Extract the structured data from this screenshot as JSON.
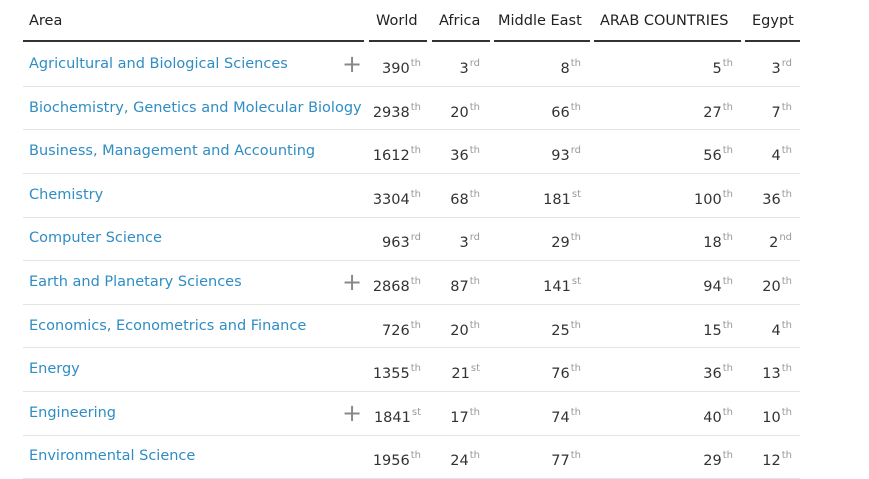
{
  "table": {
    "columns": [
      "Area",
      "World",
      "Africa",
      "Middle East",
      "ARAB COUNTRIES",
      "Egypt"
    ],
    "rows": [
      {
        "area": "Agricultural and Biological Sciences",
        "expandable": true,
        "ranks": [
          [
            390,
            "th"
          ],
          [
            3,
            "rd"
          ],
          [
            8,
            "th"
          ],
          [
            5,
            "th"
          ],
          [
            3,
            "rd"
          ]
        ]
      },
      {
        "area": "Biochemistry, Genetics and Molecular Biology",
        "expandable": false,
        "ranks": [
          [
            2938,
            "th"
          ],
          [
            20,
            "th"
          ],
          [
            66,
            "th"
          ],
          [
            27,
            "th"
          ],
          [
            7,
            "th"
          ]
        ]
      },
      {
        "area": "Business, Management and Accounting",
        "expandable": false,
        "ranks": [
          [
            1612,
            "th"
          ],
          [
            36,
            "th"
          ],
          [
            93,
            "rd"
          ],
          [
            56,
            "th"
          ],
          [
            4,
            "th"
          ]
        ]
      },
      {
        "area": "Chemistry",
        "expandable": false,
        "ranks": [
          [
            3304,
            "th"
          ],
          [
            68,
            "th"
          ],
          [
            181,
            "st"
          ],
          [
            100,
            "th"
          ],
          [
            36,
            "th"
          ]
        ]
      },
      {
        "area": "Computer Science",
        "expandable": false,
        "ranks": [
          [
            963,
            "rd"
          ],
          [
            3,
            "rd"
          ],
          [
            29,
            "th"
          ],
          [
            18,
            "th"
          ],
          [
            2,
            "nd"
          ]
        ]
      },
      {
        "area": "Earth and Planetary Sciences",
        "expandable": true,
        "ranks": [
          [
            2868,
            "th"
          ],
          [
            87,
            "th"
          ],
          [
            141,
            "st"
          ],
          [
            94,
            "th"
          ],
          [
            20,
            "th"
          ]
        ]
      },
      {
        "area": "Economics, Econometrics and Finance",
        "expandable": false,
        "ranks": [
          [
            726,
            "th"
          ],
          [
            20,
            "th"
          ],
          [
            25,
            "th"
          ],
          [
            15,
            "th"
          ],
          [
            4,
            "th"
          ]
        ]
      },
      {
        "area": "Energy",
        "expandable": false,
        "ranks": [
          [
            1355,
            "th"
          ],
          [
            21,
            "st"
          ],
          [
            76,
            "th"
          ],
          [
            36,
            "th"
          ],
          [
            13,
            "th"
          ]
        ]
      },
      {
        "area": "Engineering",
        "expandable": true,
        "ranks": [
          [
            1841,
            "st"
          ],
          [
            17,
            "th"
          ],
          [
            74,
            "th"
          ],
          [
            40,
            "th"
          ],
          [
            10,
            "th"
          ]
        ]
      },
      {
        "area": "Environmental Science",
        "expandable": false,
        "ranks": [
          [
            1956,
            "th"
          ],
          [
            24,
            "th"
          ],
          [
            77,
            "th"
          ],
          [
            29,
            "th"
          ],
          [
            12,
            "th"
          ]
        ]
      }
    ]
  }
}
